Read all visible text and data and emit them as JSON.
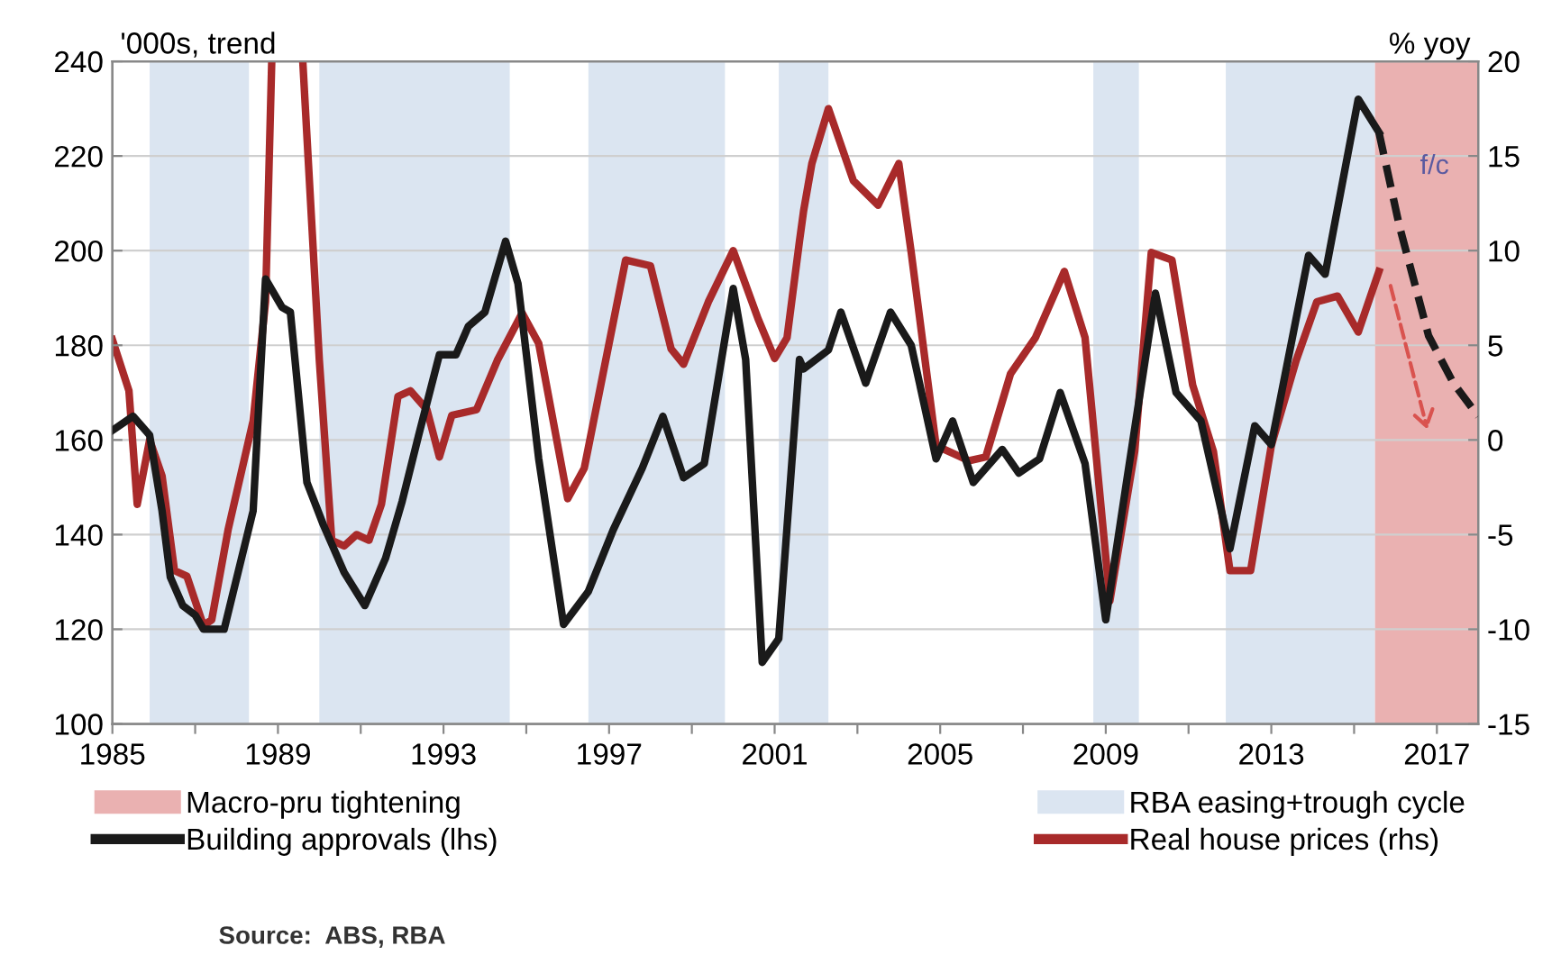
{
  "chart_data": {
    "type": "line",
    "ylabel": "'000s, trend",
    "y2label": "% yoy",
    "xlim": [
      1985,
      2018
    ],
    "ylim": [
      100,
      240
    ],
    "y2lim": [
      -15,
      20
    ],
    "xticks": [
      1985,
      {
        "value": 1987,
        "label": null
      },
      1989,
      {
        "value": 1991,
        "label": null
      },
      1993,
      {
        "value": 1995,
        "label": null
      },
      1997,
      {
        "value": 1999,
        "label": null
      },
      2001,
      {
        "value": 2003,
        "label": null
      },
      2005,
      {
        "value": 2007,
        "label": null
      },
      2009,
      {
        "value": 2011,
        "label": null
      },
      2013,
      {
        "value": 2015,
        "label": null
      },
      2017
    ],
    "yticks": [
      100,
      120,
      140,
      160,
      180,
      200,
      220,
      240
    ],
    "y2ticks": [
      -15,
      -10,
      -5,
      0,
      5,
      10,
      15,
      20
    ],
    "grid": "y",
    "legend": "bottom",
    "line_style": "solid",
    "bands": [
      {
        "axis": "x",
        "from": 2015.5,
        "to": 2018.0,
        "label": "Macro-pru tightening",
        "color": "#eab1b1"
      },
      {
        "axis": "x",
        "from": 1985.9,
        "to": 1988.3,
        "label": "RBA easing+trough cycle",
        "color": "#dbe5f1"
      },
      {
        "axis": "x",
        "from": 1990.0,
        "to": 1994.6,
        "color": "#dbe5f1"
      },
      {
        "axis": "x",
        "from": 1996.5,
        "to": 1999.8,
        "color": "#dbe5f1"
      },
      {
        "axis": "x",
        "from": 2001.1,
        "to": 2002.3,
        "color": "#dbe5f1"
      },
      {
        "axis": "x",
        "from": 2008.7,
        "to": 2009.8,
        "color": "#dbe5f1"
      },
      {
        "axis": "x",
        "from": 2011.9,
        "to": 2015.5,
        "color": "#dbe5f1"
      }
    ],
    "series": [
      {
        "name": "Building approvals (lhs)",
        "color": "#1a1a1a",
        "x": [
          1985.0,
          1985.5,
          1985.9,
          1986.2,
          1986.4,
          1986.7,
          1987.0,
          1987.2,
          1987.7,
          1988.4,
          1988.7,
          1989.1,
          1989.3,
          1989.7,
          1990.1,
          1990.6,
          1991.1,
          1991.6,
          1992.0,
          1992.4,
          1992.9,
          1993.3,
          1993.6,
          1994.0,
          1994.5,
          1994.8,
          1995.3,
          1995.9,
          1996.5,
          1997.1,
          1997.8,
          1998.3,
          1998.8,
          1999.3,
          2000.0,
          2000.3,
          2000.7,
          2001.1,
          2001.6,
          2001.7,
          2002.3,
          2002.6,
          2003.2,
          2003.8,
          2004.3,
          2004.9,
          2005.3,
          2005.8,
          2006.5,
          2006.9,
          2007.4,
          2007.9,
          2008.5,
          2009.0,
          2009.5,
          2010.2,
          2010.7,
          2011.3,
          2012.0,
          2012.6,
          2013.0,
          2013.9,
          2014.3,
          2015.1,
          2015.6
        ],
        "values": [
          162,
          165,
          161,
          145,
          131,
          125,
          123,
          120,
          120,
          145,
          194,
          188,
          187,
          151,
          142,
          132,
          125,
          135,
          147,
          161,
          178,
          178,
          184,
          187,
          202,
          193,
          156,
          121,
          128,
          141,
          154,
          165,
          152,
          155,
          192,
          177,
          113,
          118,
          177,
          175,
          179,
          187,
          172,
          187,
          180,
          156,
          164,
          151,
          158,
          153,
          156,
          170,
          155,
          122,
          151,
          191,
          170,
          164,
          137,
          163,
          159,
          199,
          195,
          232,
          225
        ]
      },
      {
        "color": "#1a1a1a",
        "line_style": "dashed",
        "x": [
          2015.6,
          2016.1,
          2016.8,
          2017.4,
          2018.0
        ],
        "values": [
          225,
          205,
          182,
          172,
          165
        ]
      },
      {
        "name": "Real house prices (rhs)",
        "color": "#a82a2a",
        "axis": "y2",
        "x": [
          1985.0,
          1985.4,
          1985.6,
          1985.9,
          1986.2,
          1986.5,
          1986.8,
          1987.2,
          1987.4,
          1987.8,
          1988.4,
          1988.7,
          1988.85,
          1989.2,
          1989.6,
          1990.0,
          1990.3,
          1990.6,
          1990.9,
          1991.2,
          1991.5,
          1991.9,
          1992.2,
          1992.6,
          1992.9,
          1993.2,
          1993.8,
          1994.3,
          1994.9,
          1995.3,
          1996.0,
          1996.4,
          1996.8,
          1997.4,
          1998.0,
          1998.5,
          1998.8,
          1999.4,
          2000.0,
          2000.6,
          2001.0,
          2001.3,
          2001.6,
          2001.7,
          2001.9,
          2002.3,
          2002.9,
          2003.5,
          2004.0,
          2004.3,
          2004.9,
          2005.7,
          2006.1,
          2006.7,
          2007.3,
          2008.0,
          2008.5,
          2009.1,
          2009.7,
          2010.1,
          2010.6,
          2011.1,
          2011.6,
          2012.0,
          2012.5,
          2013.0,
          2013.6,
          2014.1,
          2014.6,
          2015.1,
          2015.6
        ],
        "values": [
          5.3,
          2.6,
          -3.4,
          0.0,
          -1.9,
          -6.9,
          -7.2,
          -9.8,
          -9.5,
          -4.7,
          1.0,
          7.3,
          20,
          null,
          20,
          4.2,
          -5.3,
          -5.6,
          -5.0,
          -5.3,
          -3.4,
          2.3,
          2.6,
          1.6,
          -0.9,
          1.3,
          1.6,
          4.2,
          6.7,
          5.1,
          -3.1,
          -1.5,
          2.9,
          9.5,
          9.2,
          4.8,
          4.0,
          7.3,
          10.0,
          6.4,
          4.3,
          5.4,
          10.5,
          12.1,
          14.6,
          17.5,
          13.7,
          12.4,
          14.6,
          9.9,
          -0.3,
          -1.1,
          -0.9,
          3.5,
          5.4,
          8.9,
          5.4,
          -8.5,
          -0.6,
          9.9,
          9.5,
          2.9,
          -0.6,
          -6.9,
          -6.9,
          -0.3,
          4.2,
          7.3,
          7.6,
          5.7,
          8.9
        ]
      }
    ],
    "annotations": [
      "f/c",
      "Source:  ABS, RBA"
    ]
  }
}
